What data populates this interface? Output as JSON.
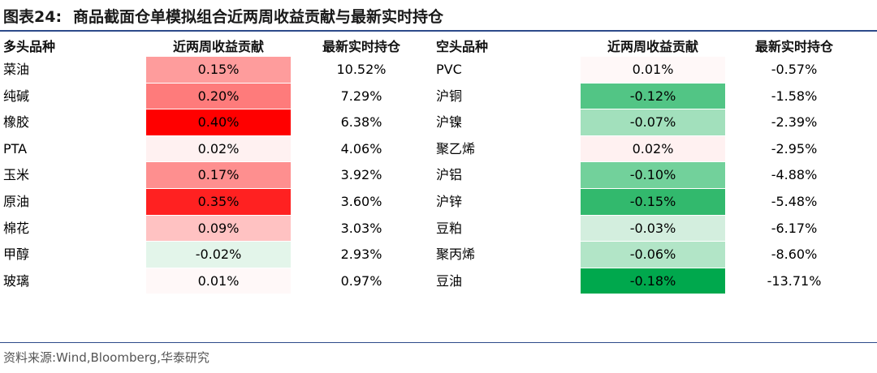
{
  "title": {
    "figure_label": "图表24:",
    "text": "商品截面仓单模拟组合近两周收益贡献与最新实时持仓"
  },
  "headers": {
    "long_name": "多头品种",
    "long_contrib": "近两周收益贡献",
    "long_position": "最新实时持仓",
    "short_name": "空头品种",
    "short_contrib": "近两周收益贡献",
    "short_position": "最新实时持仓"
  },
  "long_rows": [
    {
      "name": "菜油",
      "contrib": "0.15%",
      "position": "10.52%",
      "color": "#fe9c9c"
    },
    {
      "name": "纯碱",
      "contrib": "0.20%",
      "position": "7.29%",
      "color": "#fe7b7b"
    },
    {
      "name": "橡胶",
      "contrib": "0.40%",
      "position": "6.38%",
      "color": "#ff0000"
    },
    {
      "name": "PTA",
      "contrib": "0.02%",
      "position": "4.06%",
      "color": "#fff1f1"
    },
    {
      "name": "玉米",
      "contrib": "0.17%",
      "position": "3.92%",
      "color": "#fe8f8f"
    },
    {
      "name": "原油",
      "contrib": "0.35%",
      "position": "3.60%",
      "color": "#ff2121"
    },
    {
      "name": "棉花",
      "contrib": "0.09%",
      "position": "3.03%",
      "color": "#ffc2c2"
    },
    {
      "name": "甲醇",
      "contrib": "-0.02%",
      "position": "2.93%",
      "color": "#e3f5ea"
    },
    {
      "name": "玻璃",
      "contrib": "0.01%",
      "position": "0.97%",
      "color": "#fff8f8"
    }
  ],
  "short_rows": [
    {
      "name": "PVC",
      "contrib": "0.01%",
      "position": "-0.57%",
      "color": "#fff8f8"
    },
    {
      "name": "沪铜",
      "contrib": "-0.12%",
      "position": "-1.58%",
      "color": "#52c585"
    },
    {
      "name": "沪镍",
      "contrib": "-0.07%",
      "position": "-2.39%",
      "color": "#a2e0bc"
    },
    {
      "name": "聚乙烯",
      "contrib": "0.02%",
      "position": "-2.95%",
      "color": "#fff1f1"
    },
    {
      "name": "沪铝",
      "contrib": "-0.10%",
      "position": "-4.88%",
      "color": "#72d19b"
    },
    {
      "name": "沪锌",
      "contrib": "-0.15%",
      "position": "-5.48%",
      "color": "#32b96d"
    },
    {
      "name": "豆粕",
      "contrib": "-0.03%",
      "position": "-6.17%",
      "color": "#d3eede"
    },
    {
      "name": "聚丙烯",
      "contrib": "-0.06%",
      "position": "-8.60%",
      "color": "#b2e5c7"
    },
    {
      "name": "豆油",
      "contrib": "-0.18%",
      "position": "-13.71%",
      "color": "#00a84d"
    }
  ],
  "source": "资料来源:Wind,Bloomberg,华泰研究"
}
